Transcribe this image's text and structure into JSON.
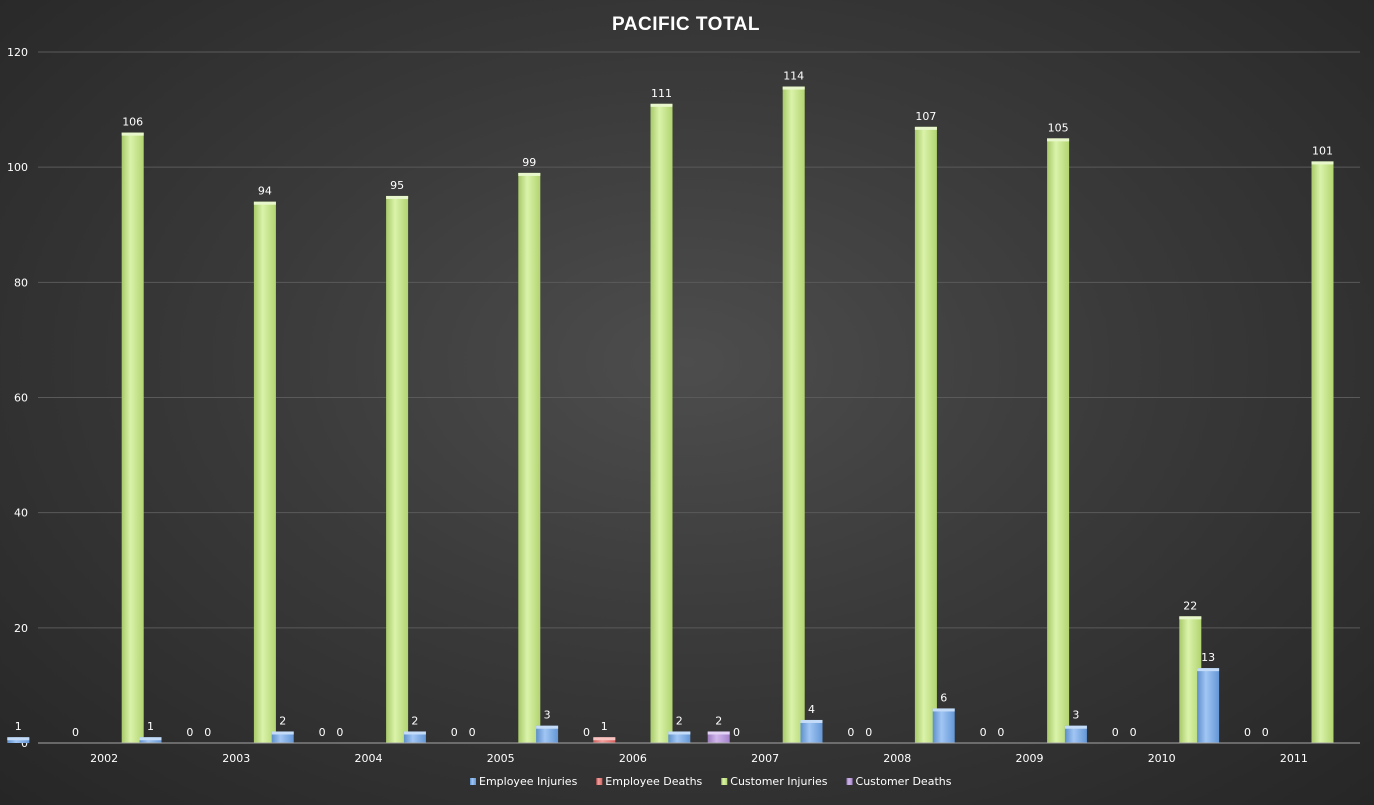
{
  "chart_data": {
    "type": "bar",
    "title": "PACIFIC TOTAL",
    "xlabel": "",
    "ylabel": "",
    "ylim": [
      0,
      120
    ],
    "yticks": [
      0,
      20,
      40,
      60,
      80,
      100,
      120
    ],
    "grid": true,
    "legend_position": "bottom",
    "categories": [
      "2002",
      "2003",
      "2004",
      "2005",
      "2006",
      "2007",
      "2008",
      "2009",
      "2010",
      "2011"
    ],
    "series": [
      {
        "name": "Employee Injuries",
        "color": "#6fa8ee",
        "values": [
          1,
          1,
          2,
          2,
          3,
          2,
          4,
          6,
          3,
          13
        ]
      },
      {
        "name": "Employee Deaths",
        "color": "#ee6b67",
        "values": [
          0,
          0,
          0,
          0,
          1,
          0,
          0,
          0,
          0,
          0
        ]
      },
      {
        "name": "Customer Injuries",
        "color": "#c6ec7c",
        "values": [
          106,
          94,
          95,
          99,
          111,
          114,
          107,
          105,
          22,
          101
        ]
      },
      {
        "name": "Customer Deaths",
        "color": "#b68fe0",
        "values": [
          0,
          0,
          0,
          0,
          2,
          0,
          0,
          0,
          0,
          0
        ]
      }
    ]
  }
}
